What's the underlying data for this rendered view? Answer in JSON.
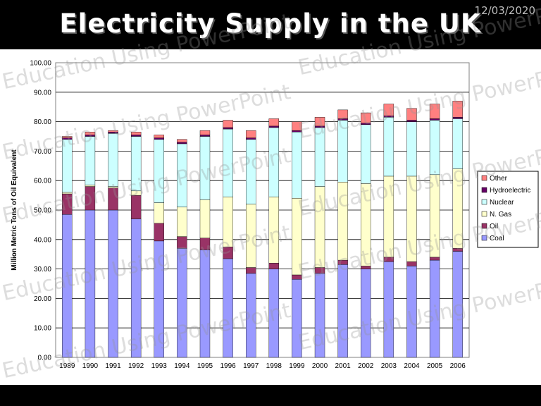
{
  "slide": {
    "title": "Electricity Supply in the UK",
    "date": "12/03/2020",
    "watermark": "Education Using PowerPoint"
  },
  "chart_data": {
    "type": "bar",
    "stacked": true,
    "title": "",
    "xlabel": "",
    "ylabel": "Million Metric Tons of Oil Equivalent",
    "ylim": [
      0,
      100
    ],
    "yticks": [
      "0.00",
      "10.00",
      "20.00",
      "30.00",
      "40.00",
      "50.00",
      "60.00",
      "70.00",
      "80.00",
      "90.00",
      "100.00"
    ],
    "grid": true,
    "legend_position": "right",
    "categories": [
      "1989",
      "1990",
      "1991",
      "1992",
      "1993",
      "1994",
      "1995",
      "1996",
      "1997",
      "1998",
      "1999",
      "2000",
      "2001",
      "2002",
      "2003",
      "2004",
      "2005",
      "2006"
    ],
    "series": [
      {
        "name": "Coal",
        "color": "#9999ff",
        "values": [
          48.5,
          50,
          50,
          47,
          39.5,
          37,
          36.5,
          33.5,
          28.5,
          30,
          26.5,
          28.5,
          31.5,
          30,
          32.5,
          31,
          33,
          36
        ]
      },
      {
        "name": "Oil",
        "color": "#993366",
        "values": [
          7,
          8,
          7.5,
          8,
          6,
          4,
          4,
          4,
          2,
          2,
          1.5,
          2,
          1.5,
          1,
          1.5,
          1.5,
          1,
          1
        ]
      },
      {
        "name": "N. Gas",
        "color": "#ffffcc",
        "values": [
          0.5,
          0.5,
          0.5,
          1.5,
          7,
          10,
          13,
          17,
          21.5,
          22.5,
          26,
          27.5,
          26.5,
          28,
          27.5,
          29,
          28,
          27
        ]
      },
      {
        "name": "Nuclear",
        "color": "#ccffff",
        "values": [
          18,
          16.5,
          18,
          18.5,
          21.5,
          21.5,
          21.5,
          23,
          22,
          23.5,
          22.5,
          20,
          21,
          20,
          20,
          18.5,
          18.5,
          17
        ]
      },
      {
        "name": "Hydroelectric",
        "color": "#660066",
        "values": [
          0.5,
          0.5,
          0.5,
          0.5,
          0.5,
          0.5,
          0.5,
          0.5,
          0.5,
          0.5,
          0.5,
          0.5,
          0.5,
          0.5,
          0.5,
          0.5,
          0.5,
          0.5
        ]
      },
      {
        "name": "Other",
        "color": "#ff8080",
        "values": [
          0.5,
          1,
          0.5,
          1,
          1,
          1,
          1.5,
          2.5,
          2.5,
          2.5,
          3,
          3,
          3,
          3.5,
          4,
          4,
          5,
          5.5
        ]
      }
    ]
  }
}
